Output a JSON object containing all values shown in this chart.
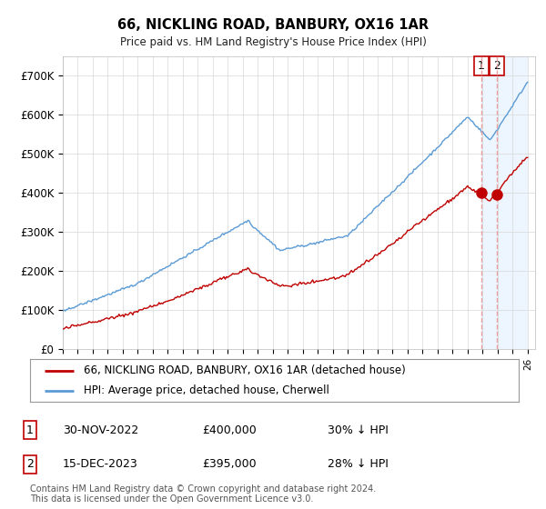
{
  "title": "66, NICKLING ROAD, BANBURY, OX16 1AR",
  "subtitle": "Price paid vs. HM Land Registry's House Price Index (HPI)",
  "legend_line1": "66, NICKLING ROAD, BANBURY, OX16 1AR (detached house)",
  "legend_line2": "HPI: Average price, detached house, Cherwell",
  "table_rows": [
    {
      "num": "1",
      "date": "30-NOV-2022",
      "price": "£400,000",
      "hpi": "30% ↓ HPI"
    },
    {
      "num": "2",
      "date": "15-DEC-2023",
      "price": "£395,000",
      "hpi": "28% ↓ HPI"
    }
  ],
  "footnote": "Contains HM Land Registry data © Crown copyright and database right 2024.\nThis data is licensed under the Open Government Licence v3.0.",
  "ylim": [
    0,
    750000
  ],
  "yticks": [
    0,
    100000,
    200000,
    300000,
    400000,
    500000,
    600000,
    700000
  ],
  "ytick_labels": [
    "£0",
    "£100K",
    "£200K",
    "£300K",
    "£400K",
    "£500K",
    "£600K",
    "£700K"
  ],
  "hpi_color": "#5b9bd5",
  "price_color": "#c00000",
  "vline_color": "#e8a0a0",
  "shade_color": "#ddeeff",
  "background_color": "#ffffff",
  "grid_color": "#d8d8d8",
  "sale1_yr": 2022.917,
  "sale1_price": 400000,
  "sale2_yr": 2023.958,
  "sale2_price": 395000,
  "xstart": 1995,
  "xend": 2026
}
